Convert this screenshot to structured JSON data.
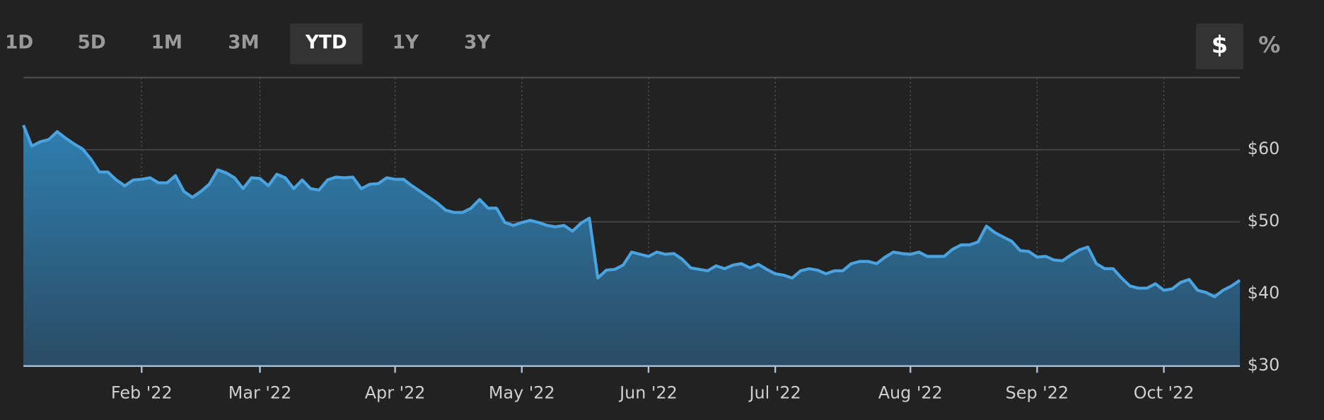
{
  "range_buttons": [
    "1D",
    "5D",
    "1M",
    "3M",
    "YTD",
    "1Y",
    "3Y"
  ],
  "unit_buttons": [
    "$",
    "%"
  ],
  "chart_data": {
    "type": "area",
    "categories": [
      null,
      null,
      null,
      null,
      null,
      null,
      null,
      null,
      null,
      null,
      null,
      null,
      null,
      null,
      "Feb '22",
      null,
      null,
      null,
      null,
      null,
      null,
      null,
      null,
      null,
      null,
      null,
      null,
      null,
      "Mar '22",
      null,
      null,
      null,
      null,
      null,
      null,
      null,
      null,
      null,
      null,
      null,
      null,
      null,
      null,
      null,
      "Apr '22",
      null,
      null,
      null,
      null,
      null,
      null,
      null,
      null,
      null,
      null,
      null,
      null,
      null,
      null,
      "May '22",
      null,
      null,
      null,
      null,
      null,
      null,
      null,
      null,
      null,
      null,
      null,
      null,
      null,
      null,
      "Jun '22",
      null,
      null,
      null,
      null,
      null,
      null,
      null,
      null,
      null,
      null,
      null,
      null,
      null,
      null,
      "Jul '22",
      null,
      null,
      null,
      null,
      null,
      null,
      null,
      null,
      null,
      null,
      null,
      null,
      null,
      null,
      null,
      "Aug '22",
      null,
      null,
      null,
      null,
      null,
      null,
      null,
      null,
      null,
      null,
      null,
      null,
      null,
      null,
      "Sep '22",
      null,
      null,
      null,
      null,
      null,
      null,
      null,
      null,
      null,
      null,
      null,
      null,
      null,
      null,
      "Oct '22",
      null,
      null,
      null,
      null,
      null,
      null,
      null,
      null,
      null
    ],
    "values": [
      63.4,
      60.5,
      61.1,
      61.4,
      62.5,
      61.6,
      60.8,
      60.1,
      58.7,
      56.9,
      56.9,
      55.8,
      55.0,
      55.8,
      55.9,
      56.1,
      55.4,
      55.4,
      56.4,
      54.2,
      53.4,
      54.2,
      55.2,
      57.2,
      56.8,
      56.1,
      54.6,
      56.1,
      56.0,
      55.0,
      56.6,
      56.1,
      54.6,
      55.8,
      54.6,
      54.4,
      55.8,
      56.2,
      56.1,
      56.2,
      54.6,
      55.2,
      55.3,
      56.1,
      55.9,
      55.9,
      55.0,
      54.2,
      53.4,
      52.6,
      51.6,
      51.3,
      51.3,
      51.9,
      53.1,
      51.9,
      51.9,
      49.9,
      49.5,
      49.9,
      50.2,
      49.9,
      49.5,
      49.3,
      49.5,
      48.7,
      49.8,
      50.5,
      42.2,
      43.3,
      43.4,
      44.0,
      45.8,
      45.5,
      45.2,
      45.8,
      45.5,
      45.6,
      44.8,
      43.6,
      43.4,
      43.2,
      43.9,
      43.5,
      44.0,
      44.2,
      43.6,
      44.1,
      43.4,
      42.8,
      42.6,
      42.2,
      43.2,
      43.5,
      43.3,
      42.8,
      43.2,
      43.2,
      44.2,
      44.5,
      44.5,
      44.2,
      45.1,
      45.8,
      45.6,
      45.5,
      45.8,
      45.2,
      45.2,
      45.2,
      46.2,
      46.8,
      46.8,
      47.2,
      49.4,
      48.5,
      47.9,
      47.3,
      46.0,
      45.9,
      45.1,
      45.2,
      44.7,
      44.6,
      45.4,
      46.1,
      46.5,
      44.2,
      43.5,
      43.5,
      42.2,
      41.1,
      40.8,
      40.8,
      41.4,
      40.5,
      40.7,
      41.6,
      42.0,
      40.5,
      40.2,
      39.6,
      40.5,
      41.1,
      41.9
    ],
    "color": "#4aa3df",
    "ylim": [
      30,
      70
    ],
    "yticks": [
      {
        "value": 30,
        "label": "$30"
      },
      {
        "value": 40,
        "label": "$40"
      },
      {
        "value": 50,
        "label": "$50"
      },
      {
        "value": 60,
        "label": "$60"
      }
    ],
    "grid": true
  }
}
